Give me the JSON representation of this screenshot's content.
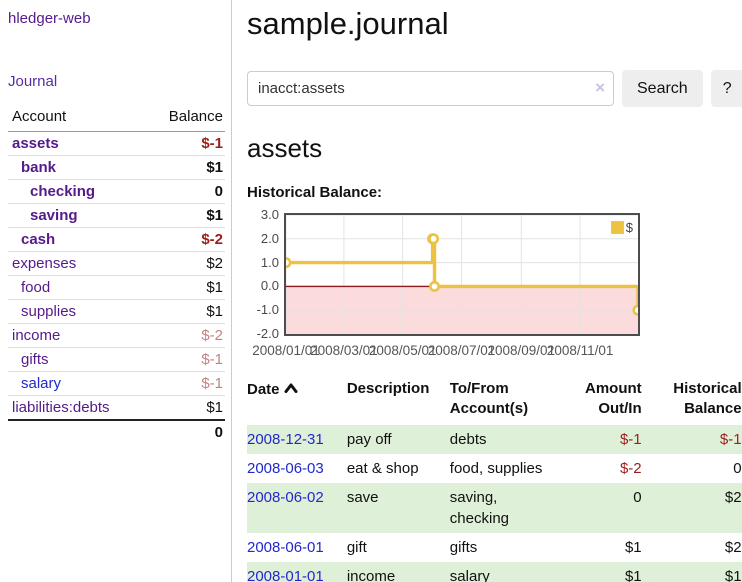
{
  "sidebar": {
    "brand": "hledger-web",
    "journal_link": "Journal",
    "headers": {
      "account": "Account",
      "balance": "Balance"
    },
    "accounts": [
      {
        "name": "assets",
        "balance": "$-1"
      },
      {
        "name": "bank",
        "balance": "$1"
      },
      {
        "name": "checking",
        "balance": "0"
      },
      {
        "name": "saving",
        "balance": "$1"
      },
      {
        "name": "cash",
        "balance": "$-2"
      },
      {
        "name": "expenses",
        "balance": "$2"
      },
      {
        "name": "food",
        "balance": "$1"
      },
      {
        "name": "supplies",
        "balance": "$1"
      },
      {
        "name": "income",
        "balance": "$-2"
      },
      {
        "name": "gifts",
        "balance": "$-1"
      },
      {
        "name": "salary",
        "balance": "$-1"
      },
      {
        "name": "liabilities:debts",
        "balance": "$1"
      }
    ],
    "total": "0"
  },
  "header": {
    "title": "sample.journal"
  },
  "search": {
    "value": "inacct:assets",
    "clear_icon": "×",
    "button_label": "Search",
    "help_label": "?"
  },
  "account_page": {
    "title": "assets",
    "chart_title": "Historical Balance:"
  },
  "chart_data": {
    "type": "line",
    "style": "step",
    "title": "Historical Balance:",
    "series": [
      {
        "name": "$",
        "color": "#edc240",
        "points": [
          [
            "2008-01-01",
            1
          ],
          [
            "2008-06-01",
            2
          ],
          [
            "2008-06-02",
            2
          ],
          [
            "2008-06-03",
            0
          ],
          [
            "2008-12-31",
            -1
          ]
        ]
      }
    ],
    "xlim": [
      "2008-01-01",
      "2008-12-31"
    ],
    "ylim": [
      -2,
      3
    ],
    "x_ticks": [
      "2008/01/01",
      "2008/03/01",
      "2008/05/01",
      "2008/07/01",
      "2008/09/01",
      "2008/11/01"
    ],
    "y_ticks": [
      "3.0",
      "2.0",
      "1.0",
      "0.0",
      "-1.0",
      "-2.0"
    ],
    "grid": true,
    "legend": {
      "label": "$",
      "position": "top-right"
    },
    "negative_region_color": "#fbdbdb",
    "zero_line_color": "#8b1a1a",
    "border_color": "#4d4d4d"
  },
  "register": {
    "headers": {
      "date": "Date",
      "description": "Description",
      "accounts": "To/From Account(s)",
      "amount": "Amount Out/In",
      "balance": "Historical Balance"
    },
    "rows": [
      {
        "date": "2008-12-31",
        "description": "pay off",
        "accounts": "debts",
        "amount": "$-1",
        "balance": "$-1"
      },
      {
        "date": "2008-06-03",
        "description": "eat & shop",
        "accounts": "food, supplies",
        "amount": "$-2",
        "balance": "0"
      },
      {
        "date": "2008-06-02",
        "description": "save",
        "accounts": "saving, checking",
        "amount": "0",
        "balance": "$2"
      },
      {
        "date": "2008-06-01",
        "description": "gift",
        "accounts": "gifts",
        "amount": "$1",
        "balance": "$2"
      },
      {
        "date": "2008-01-01",
        "description": "income",
        "accounts": "salary",
        "amount": "$1",
        "balance": "$1"
      }
    ]
  },
  "colors": {
    "link_purple": "#551a8b",
    "link_blue": "#2228cc",
    "negative_strong": "#9e1c1c",
    "negative_soft": "#c08484",
    "row_green": "#dff0d8",
    "series_gold": "#edc240"
  }
}
